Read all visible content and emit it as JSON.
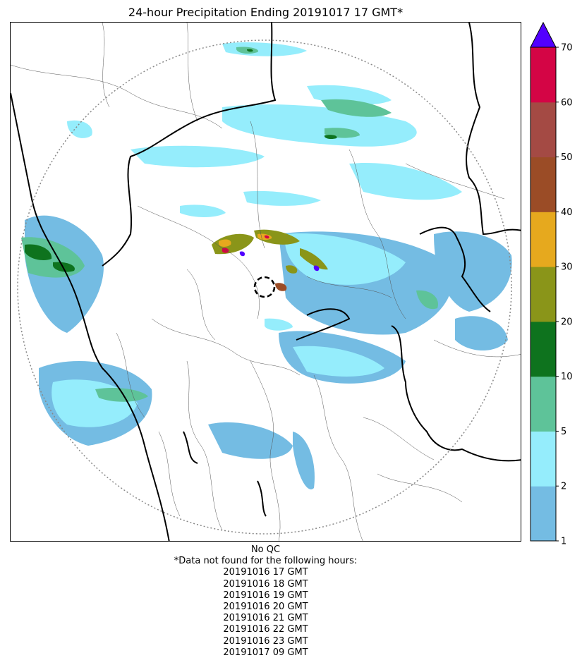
{
  "title": "24-hour Precipitation Ending 20191017 17 GMT*",
  "colorbar": {
    "levels": [
      "1",
      "2",
      "5",
      "10",
      "20",
      "30",
      "40",
      "50",
      "60",
      "70"
    ],
    "colors": [
      "#74BCE3",
      "#95EDFC",
      "#5EC399",
      "#0E731E",
      "#8A9519",
      "#E6A91E",
      "#9B4C26",
      "#A44A44",
      "#D40545"
    ],
    "extend_color": "#5200FF"
  },
  "map": {
    "radar_range_ring_color": "#888888",
    "border_color": "#000000"
  },
  "notes": {
    "qc": "No QC",
    "missing_header": "*Data not found for the following hours:",
    "missing_hours": [
      "20191016 17 GMT",
      "20191016 18 GMT",
      "20191016 19 GMT",
      "20191016 20 GMT",
      "20191016 21 GMT",
      "20191016 22 GMT",
      "20191016 23 GMT",
      "20191017 09 GMT"
    ]
  }
}
